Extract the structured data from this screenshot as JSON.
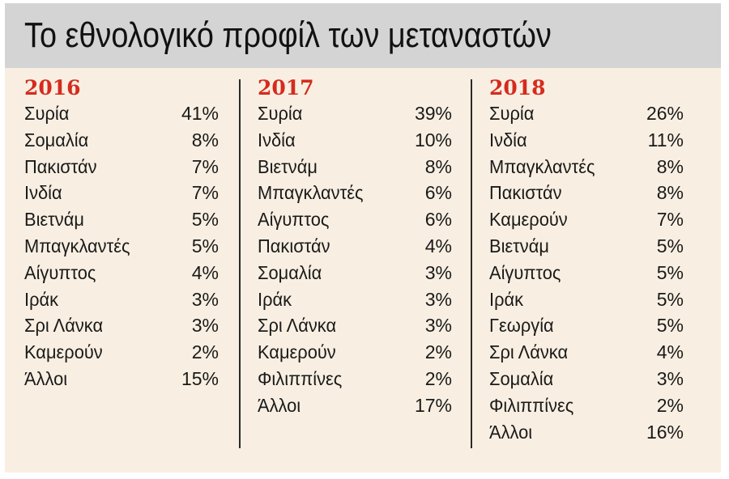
{
  "title": "Το εθνολογικό προφίλ των μεταναστών",
  "columns": [
    {
      "year": "2016",
      "rows": [
        {
          "country": "Συρία",
          "pct": "41%"
        },
        {
          "country": "Σομαλία",
          "pct": "8%"
        },
        {
          "country": "Πακιστάν",
          "pct": "7%"
        },
        {
          "country": "Ινδία",
          "pct": "7%"
        },
        {
          "country": "Βιετνάμ",
          "pct": "5%"
        },
        {
          "country": "Μπαγκλαντές",
          "pct": "5%"
        },
        {
          "country": "Αίγυπτος",
          "pct": "4%"
        },
        {
          "country": "Ιράκ",
          "pct": "3%"
        },
        {
          "country": "Σρι Λάνκα",
          "pct": "3%"
        },
        {
          "country": "Καμερούν",
          "pct": "2%"
        },
        {
          "country": "Άλλοι",
          "pct": "15%"
        }
      ]
    },
    {
      "year": "2017",
      "rows": [
        {
          "country": "Συρία",
          "pct": "39%"
        },
        {
          "country": "Ινδία",
          "pct": "10%"
        },
        {
          "country": "Βιετνάμ",
          "pct": "8%"
        },
        {
          "country": "Μπαγκλαντές",
          "pct": "6%"
        },
        {
          "country": "Αίγυπτος",
          "pct": "6%"
        },
        {
          "country": "Πακιστάν",
          "pct": "4%"
        },
        {
          "country": "Σομαλία",
          "pct": "3%"
        },
        {
          "country": "Ιράκ",
          "pct": "3%"
        },
        {
          "country": "Σρι Λάνκα",
          "pct": "3%"
        },
        {
          "country": "Καμερούν",
          "pct": "2%"
        },
        {
          "country": "Φιλιππίνες",
          "pct": "2%"
        },
        {
          "country": "Άλλοι",
          "pct": "17%"
        }
      ]
    },
    {
      "year": "2018",
      "rows": [
        {
          "country": "Συρία",
          "pct": "26%"
        },
        {
          "country": "Ινδία",
          "pct": "11%"
        },
        {
          "country": "Μπαγκλαντές",
          "pct": "8%"
        },
        {
          "country": "Πακιστάν",
          "pct": "8%"
        },
        {
          "country": "Καμερούν",
          "pct": "7%"
        },
        {
          "country": "Βιετνάμ",
          "pct": "5%"
        },
        {
          "country": "Αίγυπτος",
          "pct": "5%"
        },
        {
          "country": "Ιράκ",
          "pct": "5%"
        },
        {
          "country": "Γεωργία",
          "pct": "5%"
        },
        {
          "country": "Σρι Λάνκα",
          "pct": "4%"
        },
        {
          "country": "Σομαλία",
          "pct": "3%"
        },
        {
          "country": "Φιλιππίνες",
          "pct": "2%"
        },
        {
          "country": "Άλλοι",
          "pct": "16%"
        }
      ]
    }
  ],
  "colors": {
    "year": "#d52b1e",
    "header_bg": "#d4d4d4",
    "panel_bg": "#f8efe2",
    "text": "#1a1a1a"
  }
}
